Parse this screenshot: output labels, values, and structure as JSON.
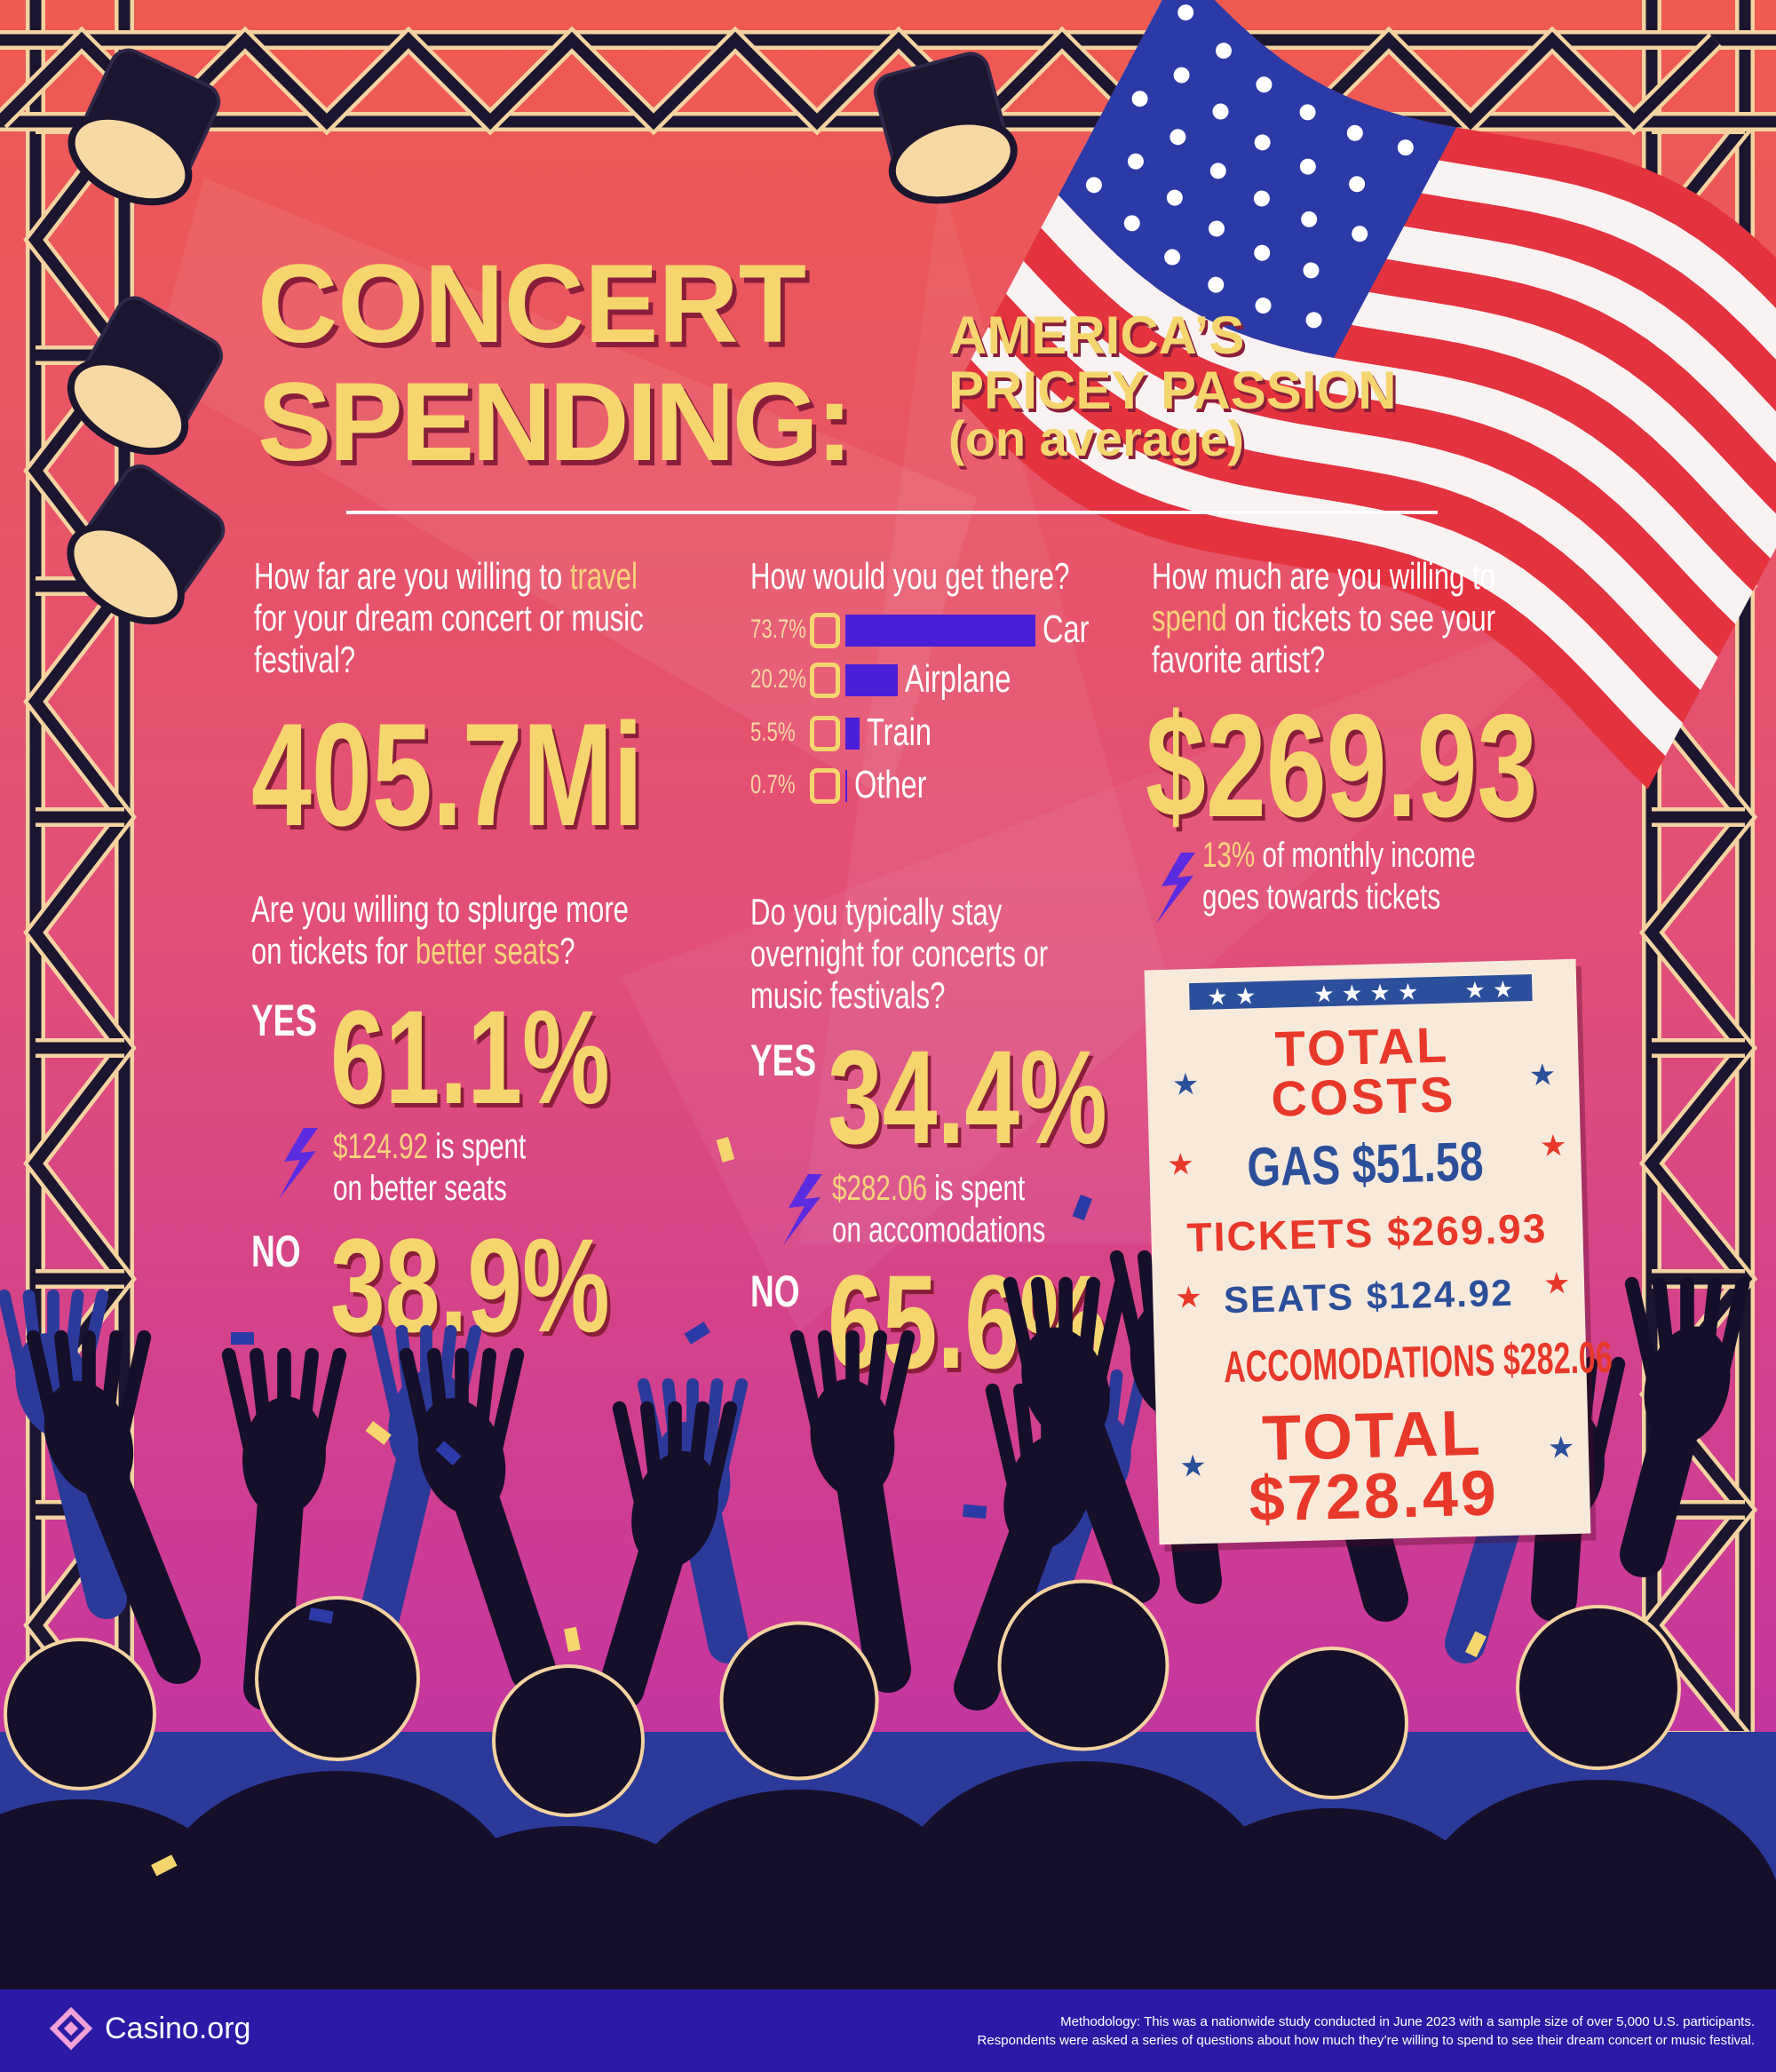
{
  "header": {
    "title_line1": "CONCERT",
    "title_line2": "SPENDING:",
    "subtitle_line1": "AMERICA’S",
    "subtitle_line2": "PRICEY PASSION",
    "subtitle_line3": "(on average)"
  },
  "travel": {
    "question_1": "How far are you willing to",
    "question_highlight": "travel",
    "question_2": "for your dream concert or music",
    "question_3": "festival?",
    "value": "405.7Mi"
  },
  "chart_data": {
    "type": "bar",
    "question": "How would you get there?",
    "categories": [
      "Car",
      "Airplane",
      "Train",
      "Other"
    ],
    "values": [
      73.7,
      20.2,
      5.5,
      0.7
    ],
    "value_labels": [
      "73.7%",
      "20.2%",
      "5.5%",
      "0.7%"
    ],
    "color": "#4b1fd8"
  },
  "tickets": {
    "question_1": "How much are you willing to",
    "question_highlight": "spend",
    "question_2": "on tickets to see your",
    "question_3": "favorite artist?",
    "value": "$269.93",
    "note_highlight": "13%",
    "note_1": "of monthly income",
    "note_2": "goes towards tickets"
  },
  "seats": {
    "question_1": "Are you willing to splurge more",
    "question_2": "on tickets for",
    "question_highlight": "better seats",
    "question_3": "?",
    "yes_label": "YES",
    "yes_value": "61.1%",
    "note_highlight": "$124.92",
    "note_1": "is spent",
    "note_2": "on better seats",
    "no_label": "NO",
    "no_value": "38.9%"
  },
  "overnight": {
    "question_1": "Do you typically stay",
    "question_2": "overnight for concerts or",
    "question_3": "music festivals?",
    "yes_label": "YES",
    "yes_value": "34.4%",
    "note_highlight": "$282.06",
    "note_1": "is spent",
    "note_2": "on accomodations",
    "no_label": "NO",
    "no_value": "65.6%"
  },
  "totals": {
    "title_1": "TOTAL",
    "title_2": "COSTS",
    "gas": "GAS $51.58",
    "tickets": "TICKETS $269.93",
    "seats": "SEATS $124.92",
    "accomodations": "ACCOMODATIONS $282.06",
    "total_label": "TOTAL",
    "total_value": "$728.49"
  },
  "footer": {
    "logo": "Casino.org",
    "methodology_1": "Methodology: This was a nationwide study conducted in June 2023 with a sample size of over 5,000 U.S. participants.",
    "methodology_2": "Respondents were asked a series of questions about how much they’re willing to spend to see their dream concert or music festival."
  }
}
